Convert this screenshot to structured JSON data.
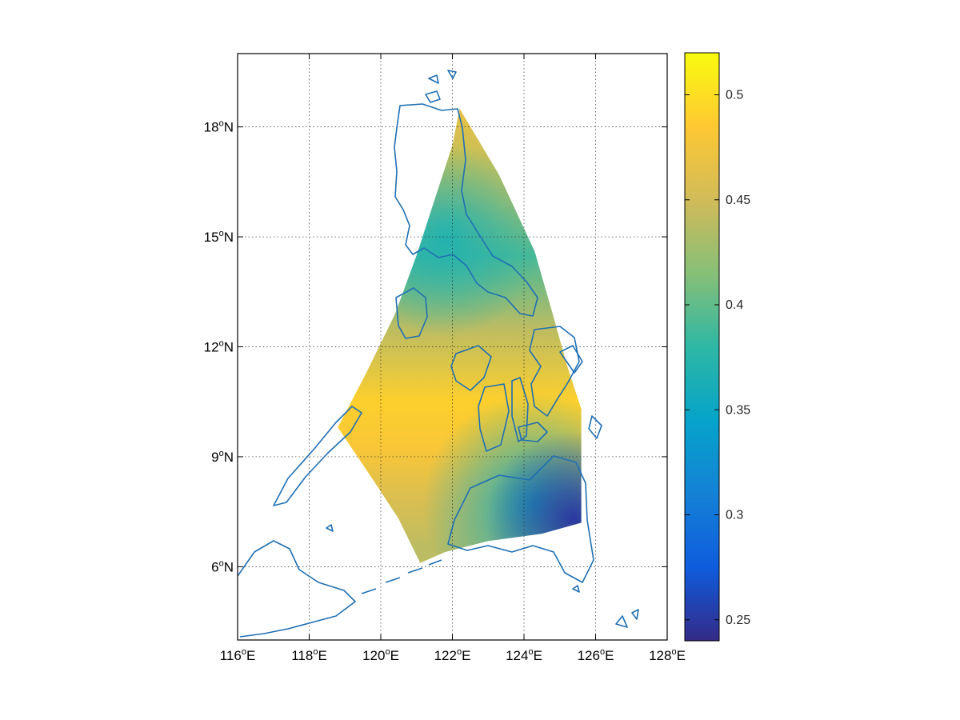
{
  "map": {
    "projection": "latitude-longitude",
    "extent": {
      "lon": [
        116,
        128
      ],
      "lat": [
        4,
        20
      ]
    },
    "grid": "dotted",
    "field_colormap": "parula",
    "coastline_color": "#1f6fb4",
    "axes": {
      "x_ticks": [
        {
          "value": 116,
          "text": "116",
          "deg": "o",
          "hemi": "E"
        },
        {
          "value": 118,
          "text": "118",
          "deg": "o",
          "hemi": "E"
        },
        {
          "value": 120,
          "text": "120",
          "deg": "o",
          "hemi": "E"
        },
        {
          "value": 122,
          "text": "122",
          "deg": "o",
          "hemi": "E"
        },
        {
          "value": 124,
          "text": "124",
          "deg": "o",
          "hemi": "E"
        },
        {
          "value": 126,
          "text": "126",
          "deg": "o",
          "hemi": "E"
        },
        {
          "value": 128,
          "text": "128",
          "deg": "o",
          "hemi": "E"
        }
      ],
      "y_ticks": [
        {
          "value": 6,
          "text": "6",
          "deg": "o",
          "hemi": "N"
        },
        {
          "value": 9,
          "text": "9",
          "deg": "o",
          "hemi": "N"
        },
        {
          "value": 12,
          "text": "12",
          "deg": "o",
          "hemi": "N"
        },
        {
          "value": 15,
          "text": "15",
          "deg": "o",
          "hemi": "N"
        },
        {
          "value": 18,
          "text": "18",
          "deg": "o",
          "hemi": "N"
        }
      ]
    },
    "field_region_lonlat": [
      [
        122.2,
        18.5
      ],
      [
        123.3,
        16.7
      ],
      [
        124.3,
        14.6
      ],
      [
        124.8,
        12.9
      ],
      [
        125.2,
        11.5
      ],
      [
        125.6,
        10.3
      ],
      [
        125.6,
        7.2
      ],
      [
        124.5,
        6.9
      ],
      [
        123.0,
        6.7
      ],
      [
        121.8,
        6.4
      ],
      [
        121.1,
        6.1
      ],
      [
        120.5,
        7.3
      ],
      [
        119.9,
        8.2
      ],
      [
        118.8,
        9.8
      ],
      [
        119.6,
        11.3
      ],
      [
        120.4,
        12.9
      ],
      [
        121.0,
        14.5
      ],
      [
        121.5,
        16.0
      ],
      [
        122.0,
        17.5
      ]
    ],
    "field_bands": [
      {
        "lat": 18.5,
        "value": 0.47
      },
      {
        "lat": 16.0,
        "value": 0.43
      },
      {
        "lat": 14.5,
        "value": 0.39
      },
      {
        "lat": 12.5,
        "value": 0.44
      },
      {
        "lat": 10.5,
        "value": 0.49
      },
      {
        "lat": 9.2,
        "value": 0.48
      },
      {
        "lat": 8.0,
        "value": 0.46
      },
      {
        "lat": 6.5,
        "value": 0.44
      }
    ],
    "low_value_patch": {
      "lon": 125.4,
      "lat": 7.3,
      "value": 0.25
    },
    "mid_low_patch": {
      "lon": 124.3,
      "lat": 7.7,
      "value": 0.36
    },
    "north_patch": {
      "lon": 121.8,
      "lat": 14.9,
      "value": 0.37
    }
  },
  "colorbar": {
    "min": 0.24,
    "max": 0.52,
    "ticks": [
      {
        "value": 0.25,
        "text": "0.25"
      },
      {
        "value": 0.3,
        "text": "0.3"
      },
      {
        "value": 0.35,
        "text": "0.35"
      },
      {
        "value": 0.4,
        "text": "0.4"
      },
      {
        "value": 0.45,
        "text": "0.45"
      },
      {
        "value": 0.5,
        "text": "0.5"
      }
    ],
    "colors": [
      "#352a87",
      "#0f5cdd",
      "#1481d6",
      "#06a4ca",
      "#2eb7a4",
      "#87bf77",
      "#d1bb59",
      "#fec832",
      "#f9fb0e"
    ]
  }
}
